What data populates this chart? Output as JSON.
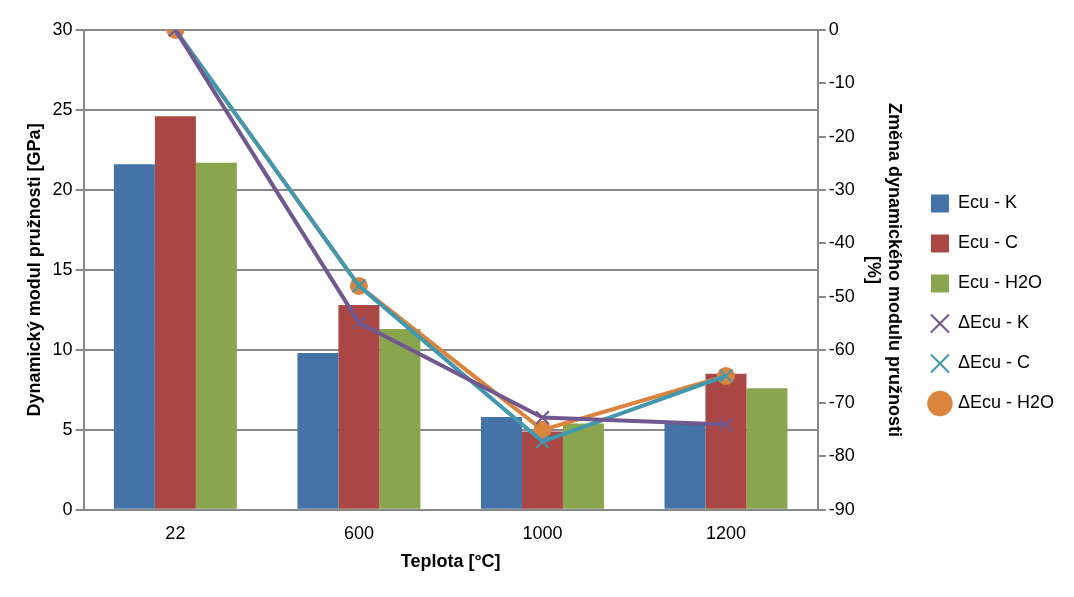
{
  "chart_data": {
    "type": "bar",
    "xlabel": "Teplota [°C]",
    "ylabel": "Dynamický modul pružnosti [GPa]",
    "y2label": "Změna dynamického modulu pružnosti [%]",
    "categories": [
      "22",
      "600",
      "1000",
      "1200"
    ],
    "ylim": [
      0,
      30
    ],
    "yticks": [
      0,
      5,
      10,
      15,
      20,
      25,
      30
    ],
    "y2lim": [
      -90,
      0
    ],
    "y2ticks": [
      -90,
      -80,
      -70,
      -60,
      -50,
      -40,
      -30,
      -20,
      -10,
      0
    ],
    "grid": "y",
    "legend": "right",
    "series": [
      {
        "name": "Ecu - K",
        "color": "#4572a7",
        "values": [
          21.6,
          9.8,
          5.8,
          5.4
        ]
      },
      {
        "name": "Ecu - C",
        "color": "#aa4643",
        "values": [
          24.6,
          12.8,
          4.9,
          8.5
        ]
      },
      {
        "name": "Ecu - H2O",
        "color": "#89a54e",
        "values": [
          21.7,
          11.3,
          5.4,
          7.6
        ]
      },
      {
        "name": "ΔEcu - K",
        "type": "line",
        "axis": "y2",
        "marker": "cross",
        "color": "#71588f",
        "values": [
          0,
          -54.9,
          -72.7,
          -74.0
        ]
      },
      {
        "name": "ΔEcu - C",
        "type": "line",
        "axis": "y2",
        "marker": "cross",
        "color": "#4198af",
        "values": [
          0,
          -48,
          -77.2,
          -64.9
        ]
      },
      {
        "name": "ΔEcu - H2O",
        "type": "line",
        "axis": "y2",
        "marker": "circle",
        "color": "#db843d",
        "values": [
          0,
          -48,
          -75,
          -64.9
        ]
      }
    ]
  }
}
